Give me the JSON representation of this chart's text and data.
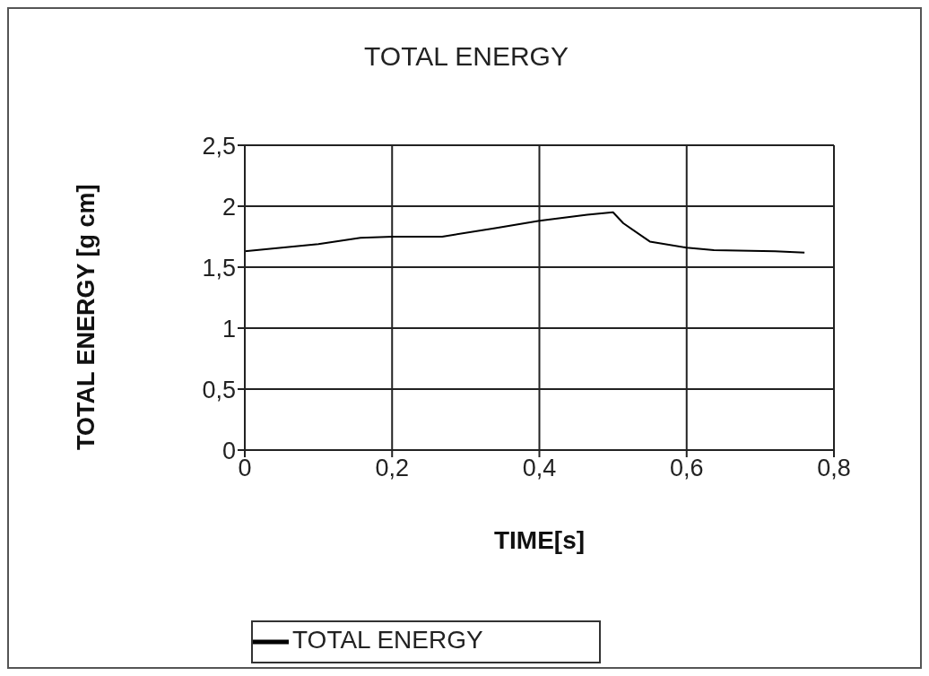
{
  "chart_data": {
    "type": "line",
    "title": "TOTAL ENERGY",
    "xlabel": "TIME[s]",
    "ylabel": "TOTAL ENERGY [g cm]",
    "x": [
      0,
      0.1,
      0.157,
      0.2,
      0.268,
      0.34,
      0.4,
      0.465,
      0.5,
      0.514,
      0.55,
      0.6,
      0.637,
      0.72,
      0.76
    ],
    "series": [
      {
        "name": "TOTAL ENERGY",
        "color": "#000000",
        "values": [
          1.63,
          1.69,
          1.74,
          1.75,
          1.75,
          1.82,
          1.88,
          1.93,
          1.95,
          1.86,
          1.71,
          1.66,
          1.64,
          1.63,
          1.62
        ]
      }
    ],
    "xlim": [
      0,
      0.8
    ],
    "xticks": [
      0,
      {
        "value": 0.2,
        "label": "0,2"
      },
      {
        "value": 0.4,
        "label": "0,4"
      },
      {
        "value": 0.6,
        "label": "0,6"
      },
      {
        "value": 0.8,
        "label": "0,8"
      }
    ],
    "ylim": [
      0,
      2.5
    ],
    "yticks": [
      0,
      {
        "value": 0.5,
        "label": "0,5"
      },
      1,
      {
        "value": 1.5,
        "label": "1,5"
      },
      2,
      {
        "value": 2.5,
        "label": "2,5"
      }
    ],
    "grid": true,
    "legend": "bottom",
    "marker": "none",
    "line_style": "solid"
  }
}
